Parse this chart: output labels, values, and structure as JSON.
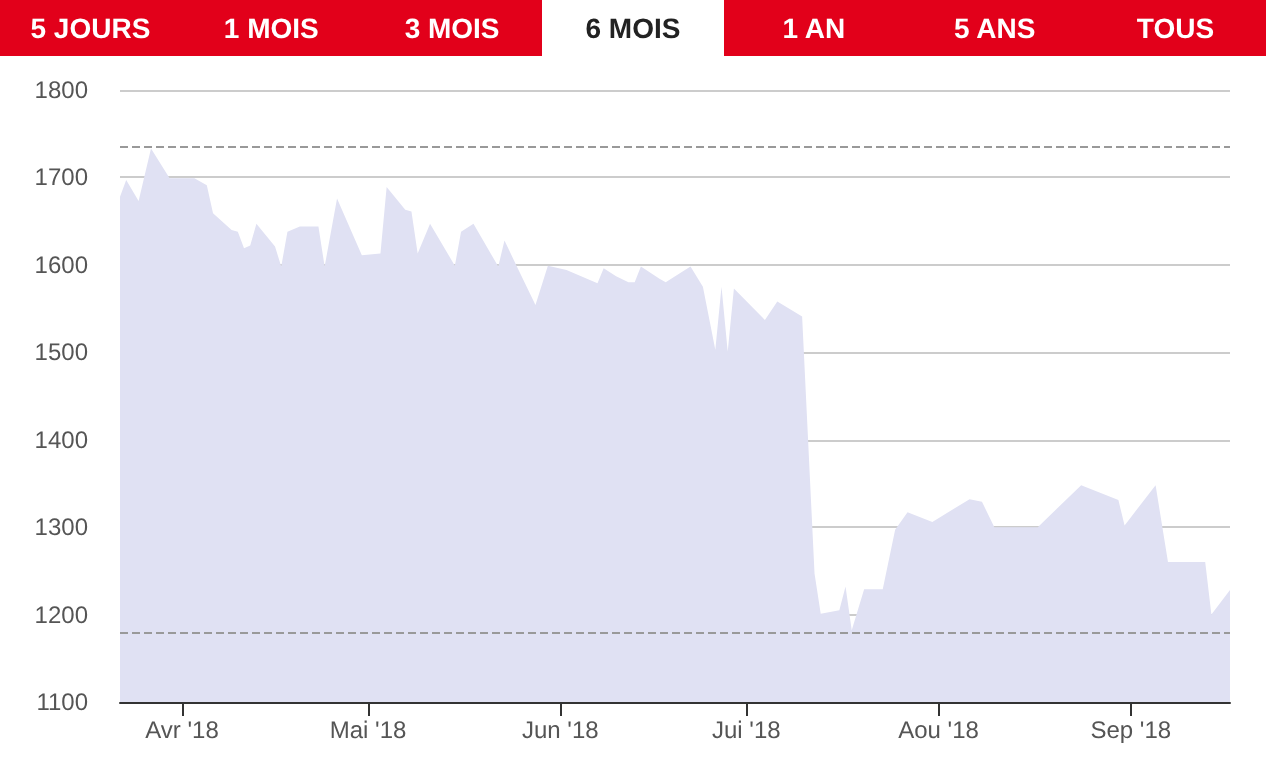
{
  "chart_data": [
    {
      "type": "other",
      "annotations": [
        "5 JOURS",
        "1 MOIS",
        "3 MOIS",
        "6 MOIS",
        "1 AN",
        "5 ANS",
        "TOUS"
      ]
    },
    {
      "type": "area",
      "color": "#e0e1f3",
      "x": [
        "2018-03-22",
        "2018-03-23",
        "2018-03-25",
        "2018-03-27",
        "2018-03-30",
        "2018-04-03",
        "2018-04-05",
        "2018-04-06",
        "2018-04-09",
        "2018-04-10",
        "2018-04-11",
        "2018-04-12",
        "2018-04-13",
        "2018-04-16",
        "2018-04-17",
        "2018-04-18",
        "2018-04-20",
        "2018-04-23",
        "2018-04-24",
        "2018-04-26",
        "2018-04-30",
        "2018-05-03",
        "2018-05-04",
        "2018-05-07",
        "2018-05-08",
        "2018-05-09",
        "2018-05-11",
        "2018-05-15",
        "2018-05-16",
        "2018-05-18",
        "2018-05-22",
        "2018-05-23",
        "2018-05-25",
        "2018-05-28",
        "2018-05-30",
        "2018-06-02",
        "2018-06-07",
        "2018-06-08",
        "2018-06-10",
        "2018-06-12",
        "2018-06-13",
        "2018-06-14",
        "2018-06-17",
        "2018-06-18",
        "2018-06-22",
        "2018-06-24",
        "2018-06-26",
        "2018-06-27",
        "2018-06-28",
        "2018-06-29",
        "2018-07-04",
        "2018-07-06",
        "2018-07-10",
        "2018-07-12",
        "2018-07-13",
        "2018-07-16",
        "2018-07-17",
        "2018-07-18",
        "2018-07-20",
        "2018-07-23",
        "2018-07-25",
        "2018-07-27",
        "2018-07-31",
        "2018-08-06",
        "2018-08-08",
        "2018-08-10",
        "2018-08-17",
        "2018-08-24",
        "2018-08-30",
        "2018-08-31",
        "2018-09-05",
        "2018-09-07",
        "2018-09-13",
        "2018-09-14",
        "2018-09-17"
      ],
      "values": [
        1678,
        1697,
        1673,
        1733,
        1699,
        1699,
        1691,
        1659,
        1640,
        1638,
        1619,
        1622,
        1647,
        1621,
        1598,
        1638,
        1644,
        1644,
        1598,
        1676,
        1611,
        1613,
        1689,
        1663,
        1661,
        1613,
        1647,
        1599,
        1638,
        1647,
        1598,
        1628,
        1598,
        1554,
        1599,
        1594,
        1579,
        1596,
        1587,
        1580,
        1580,
        1598,
        1584,
        1580,
        1598,
        1575,
        1503,
        1575,
        1501,
        1573,
        1537,
        1558,
        1541,
        1247,
        1201,
        1205,
        1232,
        1182,
        1229,
        1229,
        1297,
        1317,
        1306,
        1332,
        1329,
        1300,
        1300,
        1348,
        1331,
        1302,
        1348,
        1260,
        1260,
        1200,
        1228
      ],
      "xlim": [
        "2018-03-22",
        "2018-09-17"
      ],
      "xticks": [
        {
          "value": "2018-04-01",
          "label": "Avr '18"
        },
        {
          "value": "2018-05-01",
          "label": "Mai '18"
        },
        {
          "value": "2018-06-01",
          "label": "Jun '18"
        },
        {
          "value": "2018-07-01",
          "label": "Jui '18"
        },
        {
          "value": "2018-08-01",
          "label": "Aou '18"
        },
        {
          "value": "2018-09-01",
          "label": "Sep '18"
        }
      ],
      "ylim": [
        1100,
        1800
      ],
      "yticks": [
        1100,
        1200,
        1300,
        1400,
        1500,
        1600,
        1700,
        1800
      ],
      "grid": "y",
      "ref_lines": [
        {
          "axis": "y",
          "value": 1735,
          "color": "#999999",
          "line_style": "dashed"
        },
        {
          "axis": "y",
          "value": 1179,
          "color": "#999999",
          "line_style": "dashed"
        }
      ]
    }
  ]
}
